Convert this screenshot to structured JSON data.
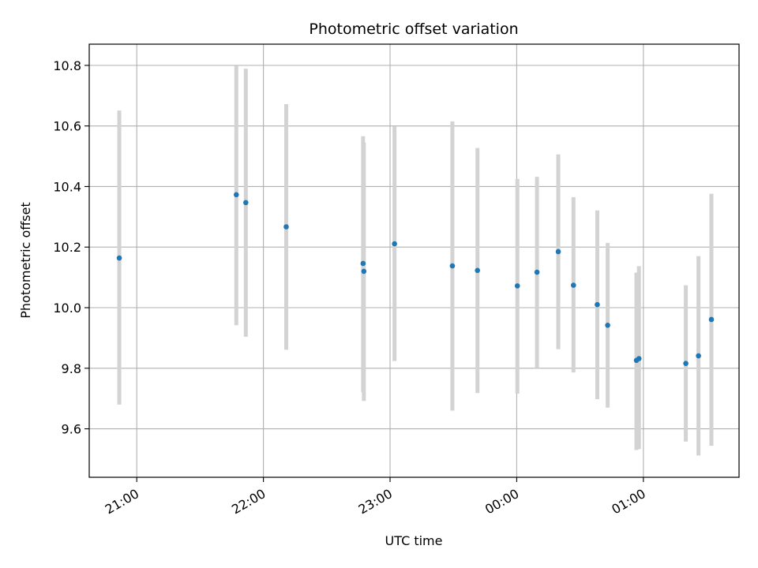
{
  "chart_data": {
    "type": "scatter",
    "title": "Photometric offset variation",
    "xlabel": "UTC time",
    "ylabel": "Photometric offset",
    "x_tick_labels": [
      "21:00",
      "22:00",
      "23:00",
      "00:00",
      "01:00"
    ],
    "x_tick_hours": [
      21,
      22,
      23,
      24,
      25
    ],
    "xlim_hours": [
      20.6247,
      25.7553
    ],
    "y_ticks": [
      9.6,
      9.8,
      10.0,
      10.2,
      10.4,
      10.6,
      10.8
    ],
    "ylim": [
      9.44,
      10.87
    ],
    "grid": true,
    "colors": {
      "marker": "#1f77b4",
      "errorbar": "#d3d3d3",
      "grid": "#b0b0b0"
    },
    "points": [
      {
        "hour": 20.862,
        "y": 10.164,
        "ymin": 9.68,
        "ymax": 10.651
      },
      {
        "hour": 21.786,
        "y": 10.373,
        "ymin": 9.942,
        "ymax": 10.799
      },
      {
        "hour": 21.861,
        "y": 10.347,
        "ymin": 9.904,
        "ymax": 10.789
      },
      {
        "hour": 22.18,
        "y": 10.267,
        "ymin": 9.861,
        "ymax": 10.672
      },
      {
        "hour": 22.787,
        "y": 10.146,
        "ymin": 9.721,
        "ymax": 10.566
      },
      {
        "hour": 22.793,
        "y": 10.12,
        "ymin": 9.692,
        "ymax": 10.545
      },
      {
        "hour": 23.035,
        "y": 10.211,
        "ymin": 9.824,
        "ymax": 10.598
      },
      {
        "hour": 23.492,
        "y": 10.138,
        "ymin": 9.66,
        "ymax": 10.615
      },
      {
        "hour": 23.69,
        "y": 10.123,
        "ymin": 9.718,
        "ymax": 10.527
      },
      {
        "hour": 24.005,
        "y": 10.072,
        "ymin": 9.716,
        "ymax": 10.425
      },
      {
        "hour": 24.16,
        "y": 10.117,
        "ymin": 9.8,
        "ymax": 10.432
      },
      {
        "hour": 24.328,
        "y": 10.185,
        "ymin": 9.863,
        "ymax": 10.506
      },
      {
        "hour": 24.448,
        "y": 10.074,
        "ymin": 9.786,
        "ymax": 10.365
      },
      {
        "hour": 24.636,
        "y": 10.01,
        "ymin": 9.698,
        "ymax": 10.321
      },
      {
        "hour": 24.718,
        "y": 9.942,
        "ymin": 9.67,
        "ymax": 10.214
      },
      {
        "hour": 24.945,
        "y": 9.826,
        "ymin": 9.53,
        "ymax": 10.116
      },
      {
        "hour": 24.965,
        "y": 9.832,
        "ymin": 9.533,
        "ymax": 10.137
      },
      {
        "hour": 25.335,
        "y": 9.816,
        "ymin": 9.558,
        "ymax": 10.074
      },
      {
        "hour": 25.435,
        "y": 9.841,
        "ymin": 9.512,
        "ymax": 10.17
      },
      {
        "hour": 25.537,
        "y": 9.961,
        "ymin": 9.544,
        "ymax": 10.376
      }
    ]
  }
}
